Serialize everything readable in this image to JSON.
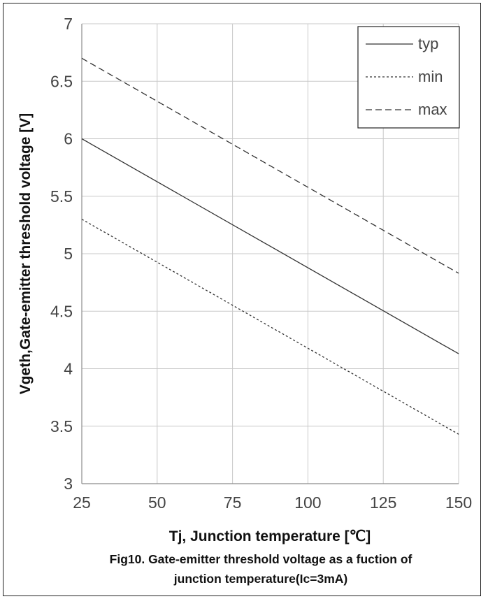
{
  "chart_data": {
    "type": "line",
    "xlabel": "Tj, Junction temperature [℃]",
    "ylabel": "Vgeth,Gate-emitter threshold voltage [V]",
    "caption_line1": "Fig10. Gate-emitter threshold voltage as a fuction of",
    "caption_line2": "junction temperature(Ic=3mA)",
    "xlim": [
      25,
      150
    ],
    "ylim": [
      3,
      7
    ],
    "x_ticks": [
      25,
      50,
      75,
      100,
      125,
      150
    ],
    "x_tick_labels": [
      "25",
      "50",
      "75",
      "100",
      "125",
      "150"
    ],
    "y_ticks": [
      3,
      3.5,
      4,
      4.5,
      5,
      5.5,
      6,
      6.5,
      7
    ],
    "y_tick_labels": [
      "3",
      "3.5",
      "4",
      "4.5",
      "5",
      "5.5",
      "6",
      "6.5",
      "7"
    ],
    "grid": true,
    "legend_position": "top-right",
    "series": [
      {
        "name": "typ",
        "style": "solid",
        "x": [
          25,
          150
        ],
        "y": [
          6.0,
          4.13
        ]
      },
      {
        "name": "min",
        "style": "dotted",
        "x": [
          25,
          150
        ],
        "y": [
          5.3,
          3.43
        ]
      },
      {
        "name": "max",
        "style": "dashed",
        "x": [
          25,
          150
        ],
        "y": [
          6.7,
          4.83
        ]
      }
    ]
  }
}
